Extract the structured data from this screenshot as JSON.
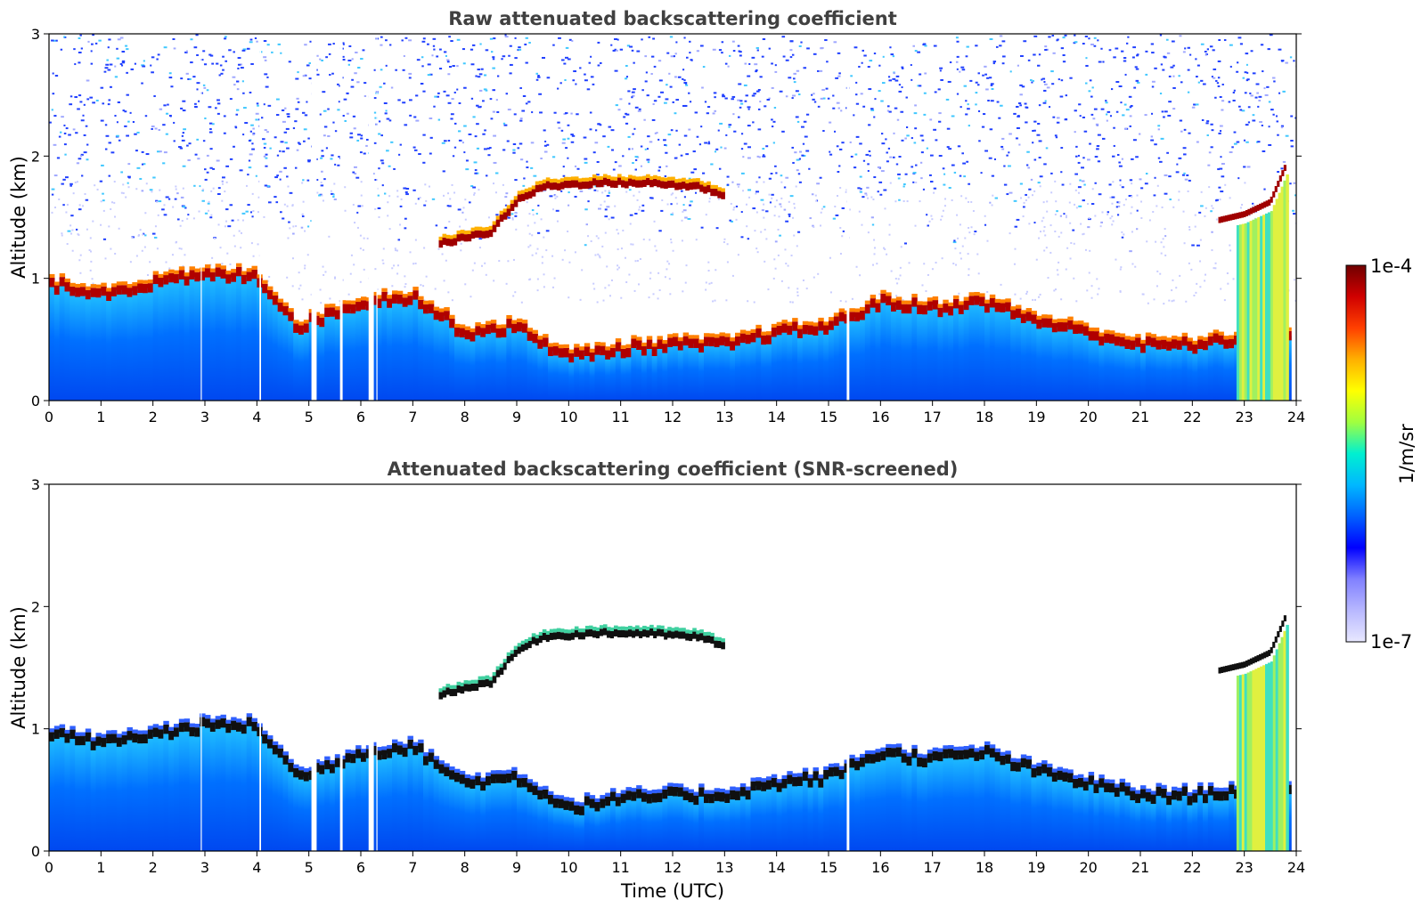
{
  "chart_data": [
    {
      "type": "heatmap",
      "title": "Raw attenuated backscattering coefficient",
      "xlabel": "",
      "ylabel": "Altitude (km)",
      "xlim": [
        0,
        24
      ],
      "ylim": [
        0,
        3
      ],
      "x_ticks": [
        "0",
        "1",
        "2",
        "3",
        "4",
        "5",
        "6",
        "7",
        "8",
        "9",
        "10",
        "11",
        "12",
        "13",
        "14",
        "15",
        "16",
        "17",
        "18",
        "19",
        "20",
        "21",
        "22",
        "23",
        "24"
      ],
      "y_ticks": [
        "0",
        "1",
        "2",
        "3"
      ],
      "screened": false,
      "layers": [
        {
          "name": "boundary-layer-top",
          "points": [
            [
              0,
              0.95
            ],
            [
              1,
              0.88
            ],
            [
              2,
              0.95
            ],
            [
              3,
              1.02
            ],
            [
              4,
              1.02
            ],
            [
              4.8,
              0.6
            ],
            [
              6,
              0.8
            ],
            [
              7,
              0.85
            ],
            [
              8,
              0.55
            ],
            [
              9,
              0.6
            ],
            [
              10,
              0.35
            ],
            [
              11,
              0.42
            ],
            [
              12,
              0.45
            ],
            [
              13,
              0.45
            ],
            [
              14,
              0.55
            ],
            [
              15,
              0.6
            ],
            [
              16,
              0.8
            ],
            [
              17,
              0.75
            ],
            [
              18,
              0.8
            ],
            [
              19,
              0.65
            ],
            [
              20,
              0.55
            ],
            [
              21,
              0.45
            ],
            [
              22,
              0.45
            ],
            [
              23,
              0.5
            ]
          ]
        },
        {
          "name": "elevated-aerosol-layer",
          "points": [
            [
              7.5,
              1.25
            ],
            [
              8.5,
              1.35
            ],
            [
              9,
              1.6
            ],
            [
              9.5,
              1.72
            ],
            [
              10.5,
              1.75
            ],
            [
              11.5,
              1.75
            ],
            [
              12.5,
              1.72
            ],
            [
              13,
              1.65
            ]
          ]
        },
        {
          "name": "late-layer",
          "points": [
            [
              22.5,
              1.45
            ],
            [
              23,
              1.5
            ],
            [
              23.5,
              1.6
            ],
            [
              23.8,
              1.9
            ]
          ]
        }
      ]
    },
    {
      "type": "heatmap",
      "title": "Attenuated backscattering coefficient (SNR-screened)",
      "xlabel": "Time (UTC)",
      "ylabel": "Altitude (km)",
      "xlim": [
        0,
        24
      ],
      "ylim": [
        0,
        3
      ],
      "x_ticks": [
        "0",
        "1",
        "2",
        "3",
        "4",
        "5",
        "6",
        "7",
        "8",
        "9",
        "10",
        "11",
        "12",
        "13",
        "14",
        "15",
        "16",
        "17",
        "18",
        "19",
        "20",
        "21",
        "22",
        "23",
        "24"
      ],
      "y_ticks": [
        "0",
        "1",
        "2",
        "3"
      ],
      "screened": true
    }
  ],
  "colorbar": {
    "label": "1/m/sr",
    "max_label": "1e-4",
    "min_label": "1e-7",
    "scale": "log",
    "colors": [
      "#e8e8ff",
      "#b8b8ff",
      "#8080ff",
      "#0000ff",
      "#0060ff",
      "#00b8ff",
      "#00f0d0",
      "#a0ff40",
      "#ffff00",
      "#ffb000",
      "#ff4000",
      "#d00000",
      "#700000"
    ]
  }
}
